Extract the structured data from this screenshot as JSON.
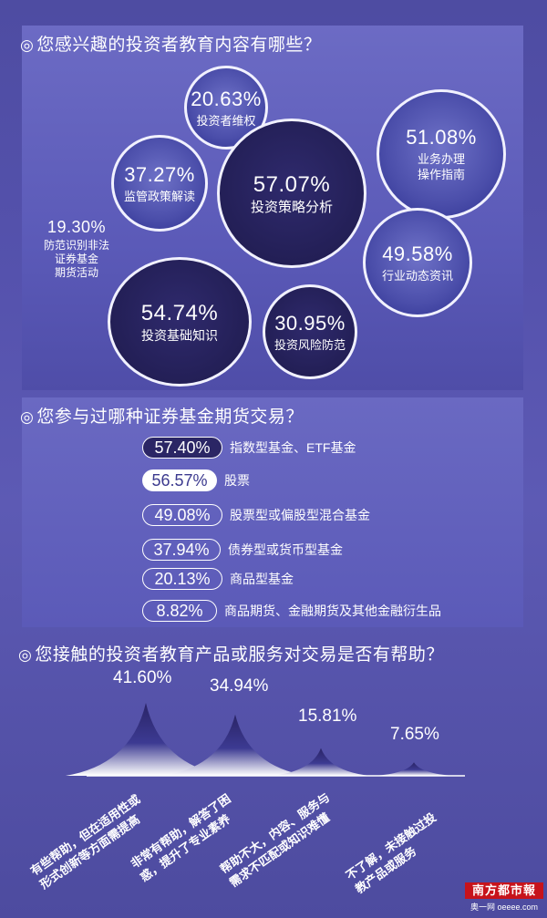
{
  "section1": {
    "title": "您感兴趣的投资者教育内容有哪些？",
    "items": [
      {
        "pct": "20.63%",
        "label": "投资者维权"
      },
      {
        "pct": "51.08%",
        "label": "业务办理\n操作指南"
      },
      {
        "pct": "37.27%",
        "label": "监管政策解读"
      },
      {
        "pct": "57.07%",
        "label": "投资策略分析"
      },
      {
        "pct": "19.30%",
        "label": "防范识别非法\n证券基金\n期货活动"
      },
      {
        "pct": "49.58%",
        "label": "行业动态资讯"
      },
      {
        "pct": "54.74%",
        "label": "投资基础知识"
      },
      {
        "pct": "30.95%",
        "label": "投资风险防范"
      }
    ]
  },
  "section2": {
    "title": "您参与过哪种证券基金期货交易？",
    "rows": [
      {
        "pct": "57.40%",
        "label": "指数型基金、ETF基金"
      },
      {
        "pct": "56.57%",
        "label": "股票"
      },
      {
        "pct": "49.08%",
        "label": "股票型或偏股型混合基金"
      },
      {
        "pct": "37.94%",
        "label": "债券型或货币型基金"
      },
      {
        "pct": "20.13%",
        "label": "商品型基金"
      },
      {
        "pct": "8.82%",
        "label": "商品期货、金融期货及其他金融衍生品"
      }
    ]
  },
  "section3": {
    "title": "您接触的投资者教育产品或服务对交易是否有帮助？"
  },
  "chart_data": {
    "type": "area",
    "categories": [
      "有些帮助，但在适用性或形式创新等方面需提高",
      "非常有帮助，解答了困惑，提升了专业素养",
      "帮助不大，内容、服务与需求不匹配或知识难懂",
      "不了解，未接触过投教产品或服务"
    ],
    "categories_lines": [
      [
        "有些帮助，但在适用性或",
        "形式创新等方面需提高"
      ],
      [
        "非常有帮助，解答了困",
        "惑，提升了专业素养"
      ],
      [
        "帮助不大，内容、服务与",
        "需求不匹配或知识难懂"
      ],
      [
        "不了解，未接触过投",
        "教产品或服务"
      ]
    ],
    "values": [
      41.6,
      34.94,
      15.81,
      7.65
    ],
    "labels": [
      "41.60%",
      "34.94%",
      "15.81%",
      "7.65%"
    ]
  },
  "footer": {
    "logo_text": "南方都市報",
    "logo_sub": "奥一网 oeeee.com"
  }
}
